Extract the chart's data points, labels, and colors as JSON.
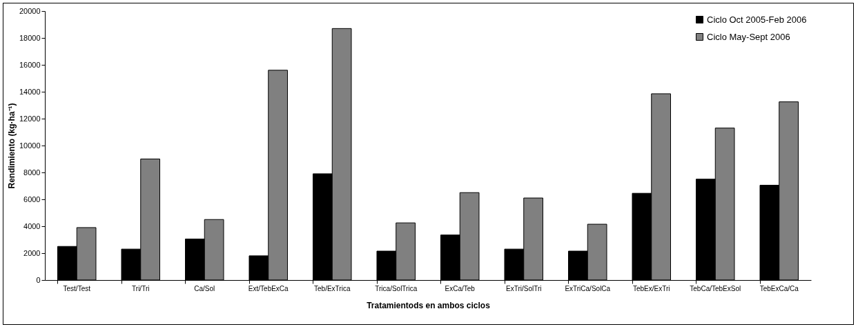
{
  "chart_data": {
    "type": "bar",
    "xlabel": "Tratamientods en ambos ciclos",
    "ylabel": "Rendimiento (kg·ha⁻¹)",
    "categories": [
      "Test/Test",
      "Tri/Tri",
      "Ca/Sol",
      "Ext/TebExCa",
      "Teb/ExTrica",
      "Trica/SolTrica",
      "ExCa/Teb",
      "ExTri/SolTri",
      "ExTriCa/SolCa",
      "TebEx/ExTri",
      "TebCa/TebExSol",
      "TebExCa/Ca"
    ],
    "series": [
      {
        "name": "Ciclo Oct 2005-Feb 2006",
        "color": "#000000",
        "values": [
          2500,
          2300,
          3050,
          1800,
          7900,
          2150,
          3350,
          2300,
          2150,
          6450,
          7500,
          7050
        ]
      },
      {
        "name": "Ciclo May-Sept 2006",
        "color": "#808080",
        "values": [
          3900,
          9000,
          4500,
          15600,
          18700,
          4250,
          6500,
          6100,
          4150,
          13850,
          11300,
          13250
        ]
      }
    ],
    "ylim": [
      0,
      20000
    ],
    "yticks": [
      0,
      2000,
      4000,
      6000,
      8000,
      10000,
      12000,
      14000,
      16000,
      18000,
      20000
    ],
    "grid": false,
    "legend": "top right"
  }
}
